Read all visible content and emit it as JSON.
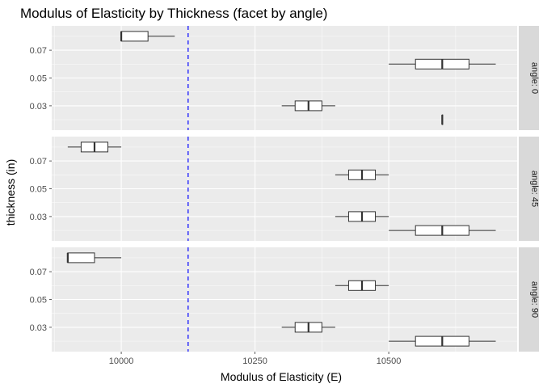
{
  "chart_data": {
    "type": "boxplot",
    "title": "Modulus of Elasticity by Thickness (facet by angle)",
    "xlabel": "Modulus of Elasticity (E)",
    "ylabel": "thickness (in)",
    "x_ticks": [
      10000,
      10250,
      10500
    ],
    "x_tick_labels": [
      "10000",
      "10250",
      "10500"
    ],
    "xlim": [
      9870,
      10740
    ],
    "y_ticks": [
      0.03,
      0.05,
      0.07
    ],
    "y_tick_labels": [
      "0.03",
      "0.05",
      "0.07"
    ],
    "ylim": [
      0.0125,
      0.0875
    ],
    "reference_line": {
      "x": 10125,
      "color": "#0000ff",
      "style": "dashed"
    },
    "grid": true,
    "legend": "none",
    "facets": [
      {
        "label": "angle: 0",
        "boxes": [
          {
            "thickness": 0.08,
            "min": 10000,
            "q1": 10000,
            "median": 10000,
            "q3": 10050,
            "max": 10100
          },
          {
            "thickness": 0.06,
            "min": 10500,
            "q1": 10550,
            "median": 10600,
            "q3": 10650,
            "max": 10700
          },
          {
            "thickness": 0.03,
            "min": 10300,
            "q1": 10325,
            "median": 10350,
            "q3": 10375,
            "max": 10400
          },
          {
            "thickness": 0.02,
            "min": 10600,
            "q1": 10600,
            "median": 10600,
            "q3": 10600,
            "max": 10600
          }
        ]
      },
      {
        "label": "angle: 45",
        "boxes": [
          {
            "thickness": 0.08,
            "min": 9900,
            "q1": 9925,
            "median": 9950,
            "q3": 9975,
            "max": 10000
          },
          {
            "thickness": 0.06,
            "min": 10400,
            "q1": 10425,
            "median": 10450,
            "q3": 10475,
            "max": 10500
          },
          {
            "thickness": 0.03,
            "min": 10400,
            "q1": 10425,
            "median": 10450,
            "q3": 10475,
            "max": 10500
          },
          {
            "thickness": 0.02,
            "min": 10500,
            "q1": 10550,
            "median": 10600,
            "q3": 10650,
            "max": 10700
          }
        ]
      },
      {
        "label": "angle: 90",
        "boxes": [
          {
            "thickness": 0.08,
            "min": 9900,
            "q1": 9900,
            "median": 9900,
            "q3": 9950,
            "max": 10000
          },
          {
            "thickness": 0.06,
            "min": 10400,
            "q1": 10425,
            "median": 10450,
            "q3": 10475,
            "max": 10500
          },
          {
            "thickness": 0.03,
            "min": 10300,
            "q1": 10325,
            "median": 10350,
            "q3": 10375,
            "max": 10400
          },
          {
            "thickness": 0.02,
            "min": 10500,
            "q1": 10550,
            "median": 10600,
            "q3": 10650,
            "max": 10700
          }
        ]
      }
    ]
  },
  "colors": {
    "panel_background": "#ebebeb",
    "strip_background": "#d9d9d9",
    "grid": "#ffffff",
    "box_fill": "#ffffff",
    "box_outline": "#333333",
    "reference_line": "#0000ff"
  }
}
